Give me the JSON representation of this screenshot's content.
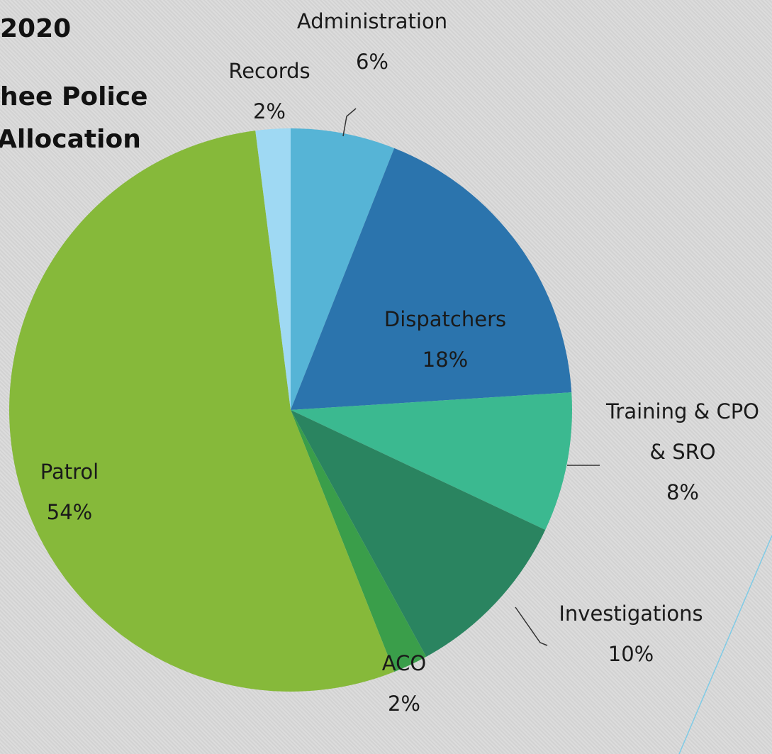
{
  "chart_data": {
    "type": "pie",
    "title": [
      "2020",
      "hee Police",
      "Allocation"
    ],
    "categories": [
      "Administration",
      "Dispatchers",
      "Training & CPO & SRO",
      "Investigations",
      "ACO",
      "Patrol",
      "Records"
    ],
    "values": [
      6,
      18,
      8,
      10,
      2,
      54,
      2
    ],
    "value_labels": [
      "6%",
      "18%",
      "8%",
      "10%",
      "2%",
      "54%",
      "2%"
    ],
    "colors": [
      "#56b4d6",
      "#2b74ad",
      "#3bb990",
      "#2a8460",
      "#3a9e4a",
      "#86b93a",
      "#9fd9f3"
    ]
  }
}
